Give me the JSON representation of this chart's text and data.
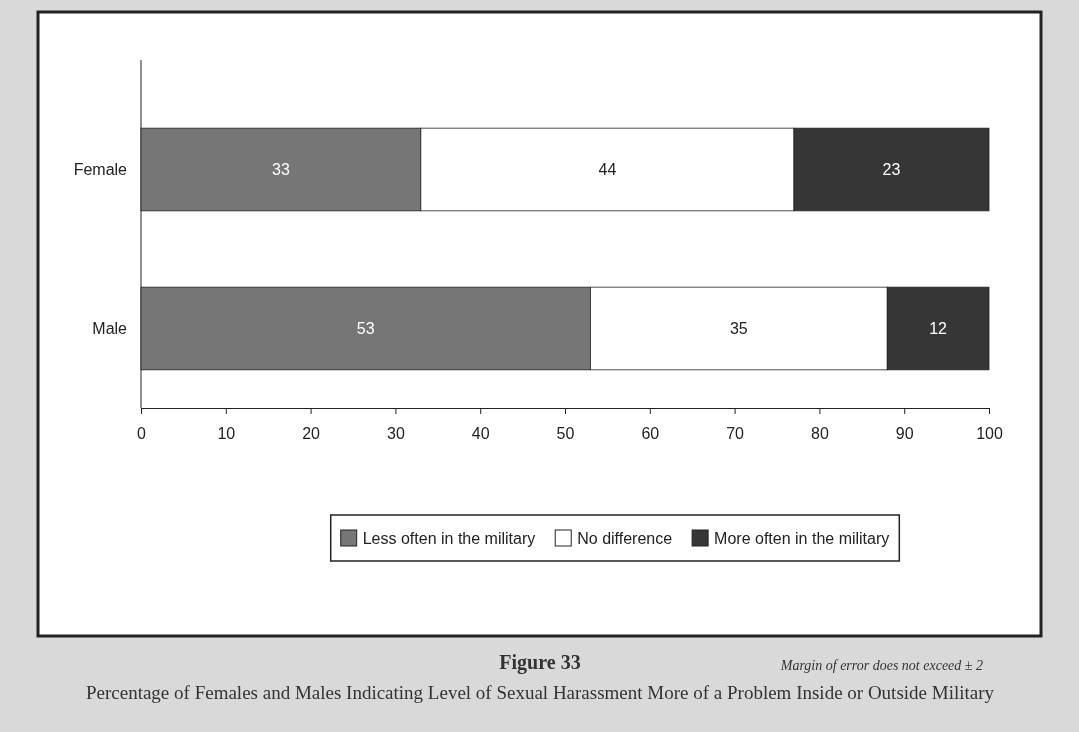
{
  "chart_data": {
    "type": "bar",
    "orientation": "horizontal",
    "stacked": true,
    "title": "Figure 33",
    "subtitle": "Percentage of Females and Males Indicating Level of Sexual Harassment More of a Problem Inside or Outside Military",
    "categories": [
      "Female",
      "Male"
    ],
    "series": [
      {
        "name": "Less often in the military",
        "color": "#767676",
        "values": [
          33,
          53
        ]
      },
      {
        "name": "No difference",
        "color": "#ffffff",
        "values": [
          44,
          35
        ]
      },
      {
        "name": "More often in the military",
        "color": "#363636",
        "values": [
          23,
          12
        ]
      }
    ],
    "xlim": [
      0,
      100
    ],
    "xticks": [
      0,
      10,
      20,
      30,
      40,
      50,
      60,
      70,
      80,
      90,
      100
    ],
    "data_labels": true,
    "legend": "bottom",
    "grid": false,
    "annotations": [
      "Margin of error does not exceed ± 2"
    ]
  }
}
